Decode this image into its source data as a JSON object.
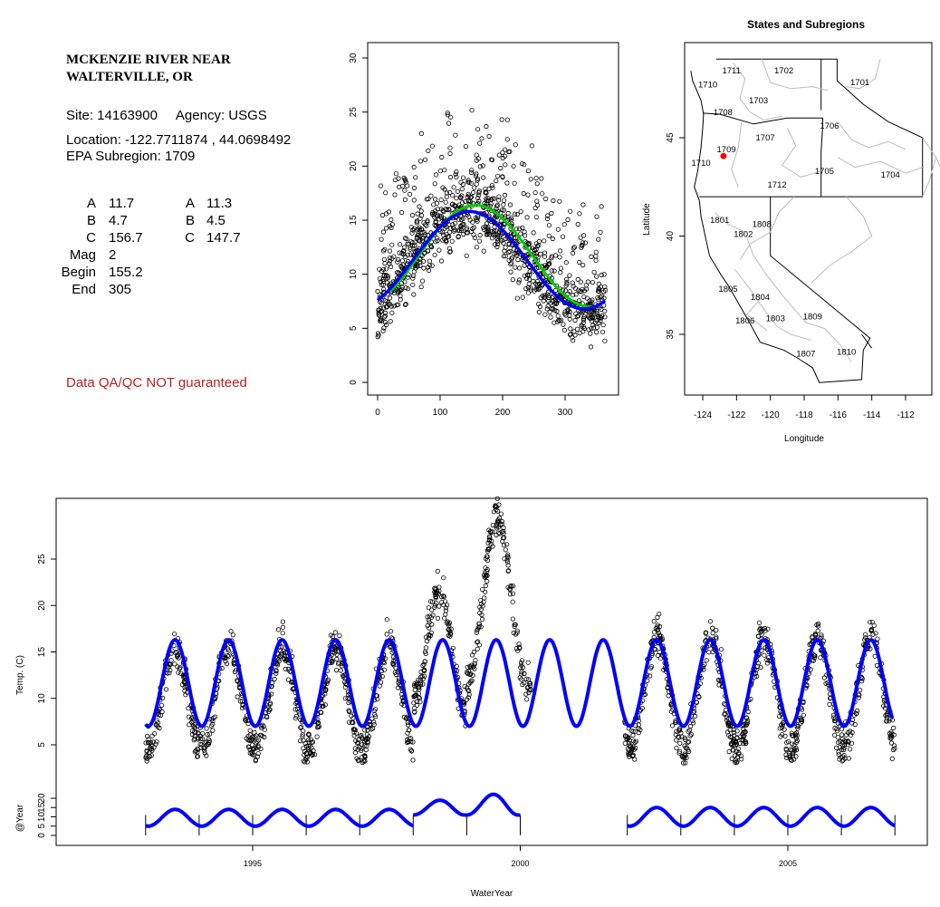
{
  "station": {
    "name_line1": "MCKENZIE RIVER NEAR",
    "name_line2": "WALTERVILLE, OR",
    "site_line": "Site: 14163900     Agency: USGS",
    "location_line": "Location: -122.7711874 , 44.0698492",
    "subregion_line": "EPA Subregion: 1709"
  },
  "params": {
    "rows": [
      {
        "label": "A",
        "val1": "11.7",
        "label2": "A",
        "val2": "11.3"
      },
      {
        "label": "B",
        "val1": "4.7",
        "label2": "B",
        "val2": "4.5"
      },
      {
        "label": "C",
        "val1": "156.7",
        "label2": "C",
        "val2": "147.7"
      },
      {
        "label": "Mag",
        "val1": "2",
        "label2": "",
        "val2": ""
      },
      {
        "label": "Begin",
        "val1": "155.2",
        "label2": "",
        "val2": ""
      },
      {
        "label": "End",
        "val1": "305",
        "label2": "",
        "val2": ""
      }
    ]
  },
  "disclaimer": "Data QA/QC NOT guaranteed",
  "colors": {
    "fit_primary": "#0000ff",
    "fit_secondary": "#00cc00",
    "site_marker": "#ff0000",
    "points": "#000000",
    "disclaimer": "#b22222",
    "boundaries": "#bbbbbb"
  },
  "chart_data": [
    {
      "type": "scatter",
      "title": "",
      "xlabel": "",
      "ylabel": "",
      "xlim": [
        0,
        365
      ],
      "ylim": [
        0,
        30
      ],
      "xticks": [
        0,
        100,
        200,
        300
      ],
      "yticks": [
        0,
        5,
        10,
        15,
        20,
        25,
        30
      ],
      "series": [
        {
          "kind": "points",
          "description_values": [
            [
              3,
              13.5
            ],
            [
              20,
              11.5
            ],
            [
              40,
              10
            ],
            [
              60,
              8.5
            ],
            [
              80,
              7.5
            ],
            [
              100,
              6.8
            ],
            [
              120,
              6.5
            ],
            [
              140,
              7
            ],
            [
              160,
              8
            ],
            [
              180,
              9.5
            ],
            [
              200,
              11
            ],
            [
              220,
              12.5
            ],
            [
              240,
              14
            ],
            [
              260,
              15
            ],
            [
              280,
              15.8
            ],
            [
              300,
              16.3
            ],
            [
              320,
              16
            ],
            [
              340,
              15.2
            ],
            [
              365,
              13.8
            ]
          ]
        },
        {
          "kind": "line",
          "color": "#0000ff",
          "A": 11.3,
          "B": 4.5,
          "C": 147.7
        },
        {
          "kind": "line",
          "color": "#00cc00",
          "A": 11.7,
          "B": 4.7,
          "C": 156.7,
          "x_start": 20,
          "x_end": 345
        }
      ]
    },
    {
      "type": "map",
      "title": "States and Subregions",
      "xlabel": "Longitude",
      "ylabel": "Latitude",
      "xlim": [
        -125.5,
        -110.8
      ],
      "ylim": [
        32.3,
        49.5
      ],
      "xticks": [
        -124,
        -122,
        -120,
        -118,
        -116,
        -114,
        -112
      ],
      "yticks": [
        35,
        40,
        45
      ],
      "regions": [
        {
          "label": "1711",
          "lon": -122.3,
          "lat": 48.4
        },
        {
          "label": "1710",
          "lon": -123.7,
          "lat": 47.7
        },
        {
          "label": "1702",
          "lon": -119.2,
          "lat": 48.4
        },
        {
          "label": "1701",
          "lon": -114.7,
          "lat": 47.8
        },
        {
          "label": "1703",
          "lon": -120.7,
          "lat": 46.9
        },
        {
          "label": "1708",
          "lon": -122.8,
          "lat": 46.3
        },
        {
          "label": "1706",
          "lon": -116.5,
          "lat": 45.6
        },
        {
          "label": "1707",
          "lon": -120.3,
          "lat": 45.0
        },
        {
          "label": "1709",
          "lon": -122.6,
          "lat": 44.4
        },
        {
          "label": "1710",
          "lon": -124.1,
          "lat": 43.7
        },
        {
          "label": "1705",
          "lon": -116.8,
          "lat": 43.3
        },
        {
          "label": "1704",
          "lon": -112.9,
          "lat": 43.1
        },
        {
          "label": "1712",
          "lon": -119.6,
          "lat": 42.6
        },
        {
          "label": "1801",
          "lon": -123.0,
          "lat": 40.8
        },
        {
          "label": "1808",
          "lon": -120.5,
          "lat": 40.6
        },
        {
          "label": "1802",
          "lon": -121.6,
          "lat": 40.1
        },
        {
          "label": "1805",
          "lon": -122.5,
          "lat": 37.3
        },
        {
          "label": "1804",
          "lon": -120.6,
          "lat": 36.9
        },
        {
          "label": "1806",
          "lon": -121.5,
          "lat": 35.7
        },
        {
          "label": "1803",
          "lon": -119.7,
          "lat": 35.8
        },
        {
          "label": "1809",
          "lon": -117.5,
          "lat": 35.9
        },
        {
          "label": "1810",
          "lon": -115.5,
          "lat": 34.1
        },
        {
          "label": "1807",
          "lon": -117.9,
          "lat": 34.0
        }
      ],
      "site": {
        "lon": -122.7711874,
        "lat": 44.0698492
      }
    },
    {
      "type": "scatter",
      "title": "",
      "xlabel": "WaterYear",
      "ylabel": "Temp. (C)",
      "xlim": [
        1992.4,
        2007.5
      ],
      "ylim": [
        2.5,
        30
      ],
      "xticks": [
        1995,
        2000,
        2005
      ],
      "yticks": [
        5,
        10,
        15,
        20,
        25
      ],
      "fit": {
        "color": "#0000ff",
        "x_start": 1993.0,
        "x_end": 2006.95,
        "period_years": 1,
        "min": 7,
        "max": 16.3
      },
      "observed_segments": [
        {
          "x_start": 1993.0,
          "x_end": 1998.0,
          "peaks": 15.5,
          "troughs": 4.5
        },
        {
          "x_start": 1998.0,
          "x_end": 1999.0,
          "peaks": 21.5,
          "troughs": 9.5
        },
        {
          "x_start": 1999.0,
          "x_end": 2000.2,
          "peaks": 29.2,
          "troughs": 11.5
        },
        {
          "x_start": 2001.95,
          "x_end": 2007.0,
          "peaks": 16.5,
          "troughs": 4.5
        }
      ]
    },
    {
      "type": "line",
      "title": "",
      "xlabel": "",
      "ylabel": "@Year",
      "xlim": [
        1992.4,
        2007.5
      ],
      "ylim": [
        0,
        28
      ],
      "yticks": [
        0,
        5,
        10,
        15,
        20
      ],
      "year_markers": [
        1993,
        1994,
        1995,
        1996,
        1997,
        1998,
        1999,
        2000,
        2002,
        2003,
        2004,
        2005,
        2006,
        2007
      ],
      "segments": [
        {
          "x_start": 1993.0,
          "x_end": 1998.0,
          "min": 5,
          "max": 14
        },
        {
          "x_start": 1998.0,
          "x_end": 1999.0,
          "min": 11,
          "max": 21
        },
        {
          "x_start": 1999.0,
          "x_end": 2000.0,
          "min": 11,
          "max": 25
        },
        {
          "x_start": 2002.0,
          "x_end": 2007.0,
          "min": 5,
          "max": 15
        }
      ]
    }
  ]
}
